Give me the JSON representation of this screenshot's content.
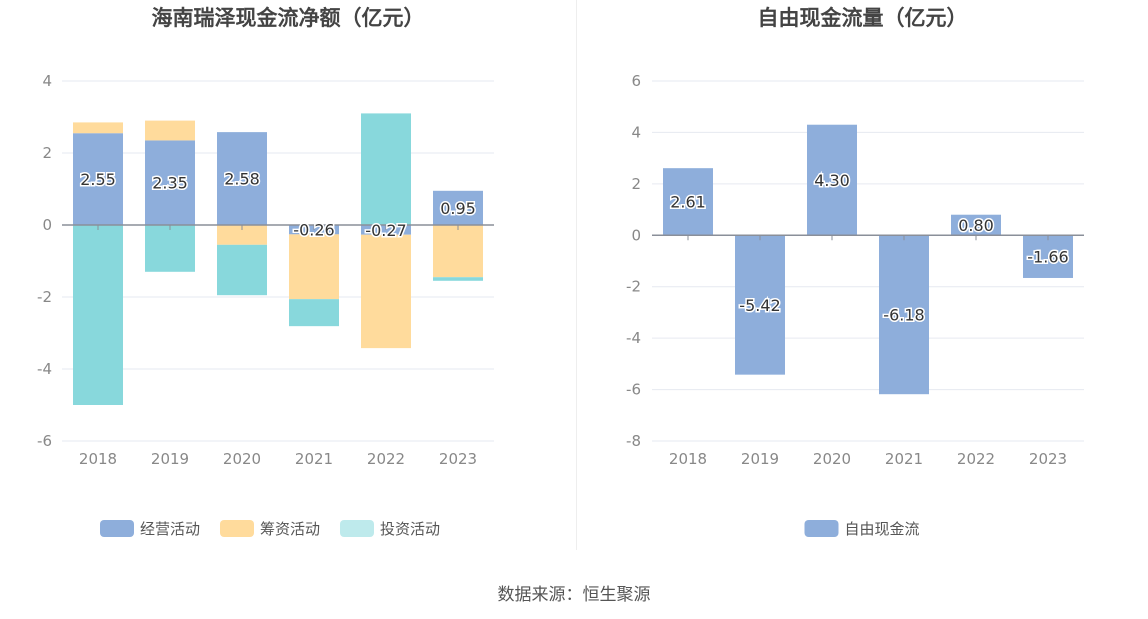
{
  "source_text": "数据来源：恒生聚源",
  "chart_data": [
    {
      "type": "bar",
      "stacked": true,
      "title": "海南瑞泽现金流净额（亿元）",
      "categories": [
        "2018",
        "2019",
        "2020",
        "2021",
        "2022",
        "2023"
      ],
      "ylim": [
        -6,
        4
      ],
      "yticks": [
        4,
        2,
        0,
        -2,
        -4,
        -6
      ],
      "grid": true,
      "legend_position": "bottom",
      "series": [
        {
          "name": "经营活动",
          "color": "#8eaedb",
          "values": [
            2.55,
            2.35,
            2.58,
            -0.26,
            -0.27,
            0.95
          ],
          "labels": [
            "2.55",
            "2.35",
            "2.58",
            "-0.26",
            "-0.27",
            "0.95"
          ]
        },
        {
          "name": "筹资活动",
          "color": "#ffdb9c",
          "values": [
            0.3,
            0.55,
            -0.55,
            -1.8,
            -3.15,
            -1.45
          ]
        },
        {
          "name": "投资活动",
          "color": "#88d8dc",
          "values": [
            -5.0,
            -1.3,
            -1.4,
            -0.75,
            3.1,
            -0.1
          ]
        }
      ]
    },
    {
      "type": "bar",
      "title": "自由现金流量（亿元）",
      "categories": [
        "2018",
        "2019",
        "2020",
        "2021",
        "2022",
        "2023"
      ],
      "ylim": [
        -8,
        6
      ],
      "yticks": [
        6,
        4,
        2,
        0,
        -2,
        -4,
        -6,
        -8
      ],
      "grid": true,
      "legend_position": "bottom",
      "series": [
        {
          "name": "自由现金流",
          "color": "#8eaedb",
          "values": [
            2.61,
            -5.42,
            4.3,
            -6.18,
            0.8,
            -1.66
          ],
          "labels": [
            "2.61",
            "-5.42",
            "4.30",
            "-6.18",
            "0.80",
            "-1.66"
          ]
        }
      ]
    }
  ]
}
